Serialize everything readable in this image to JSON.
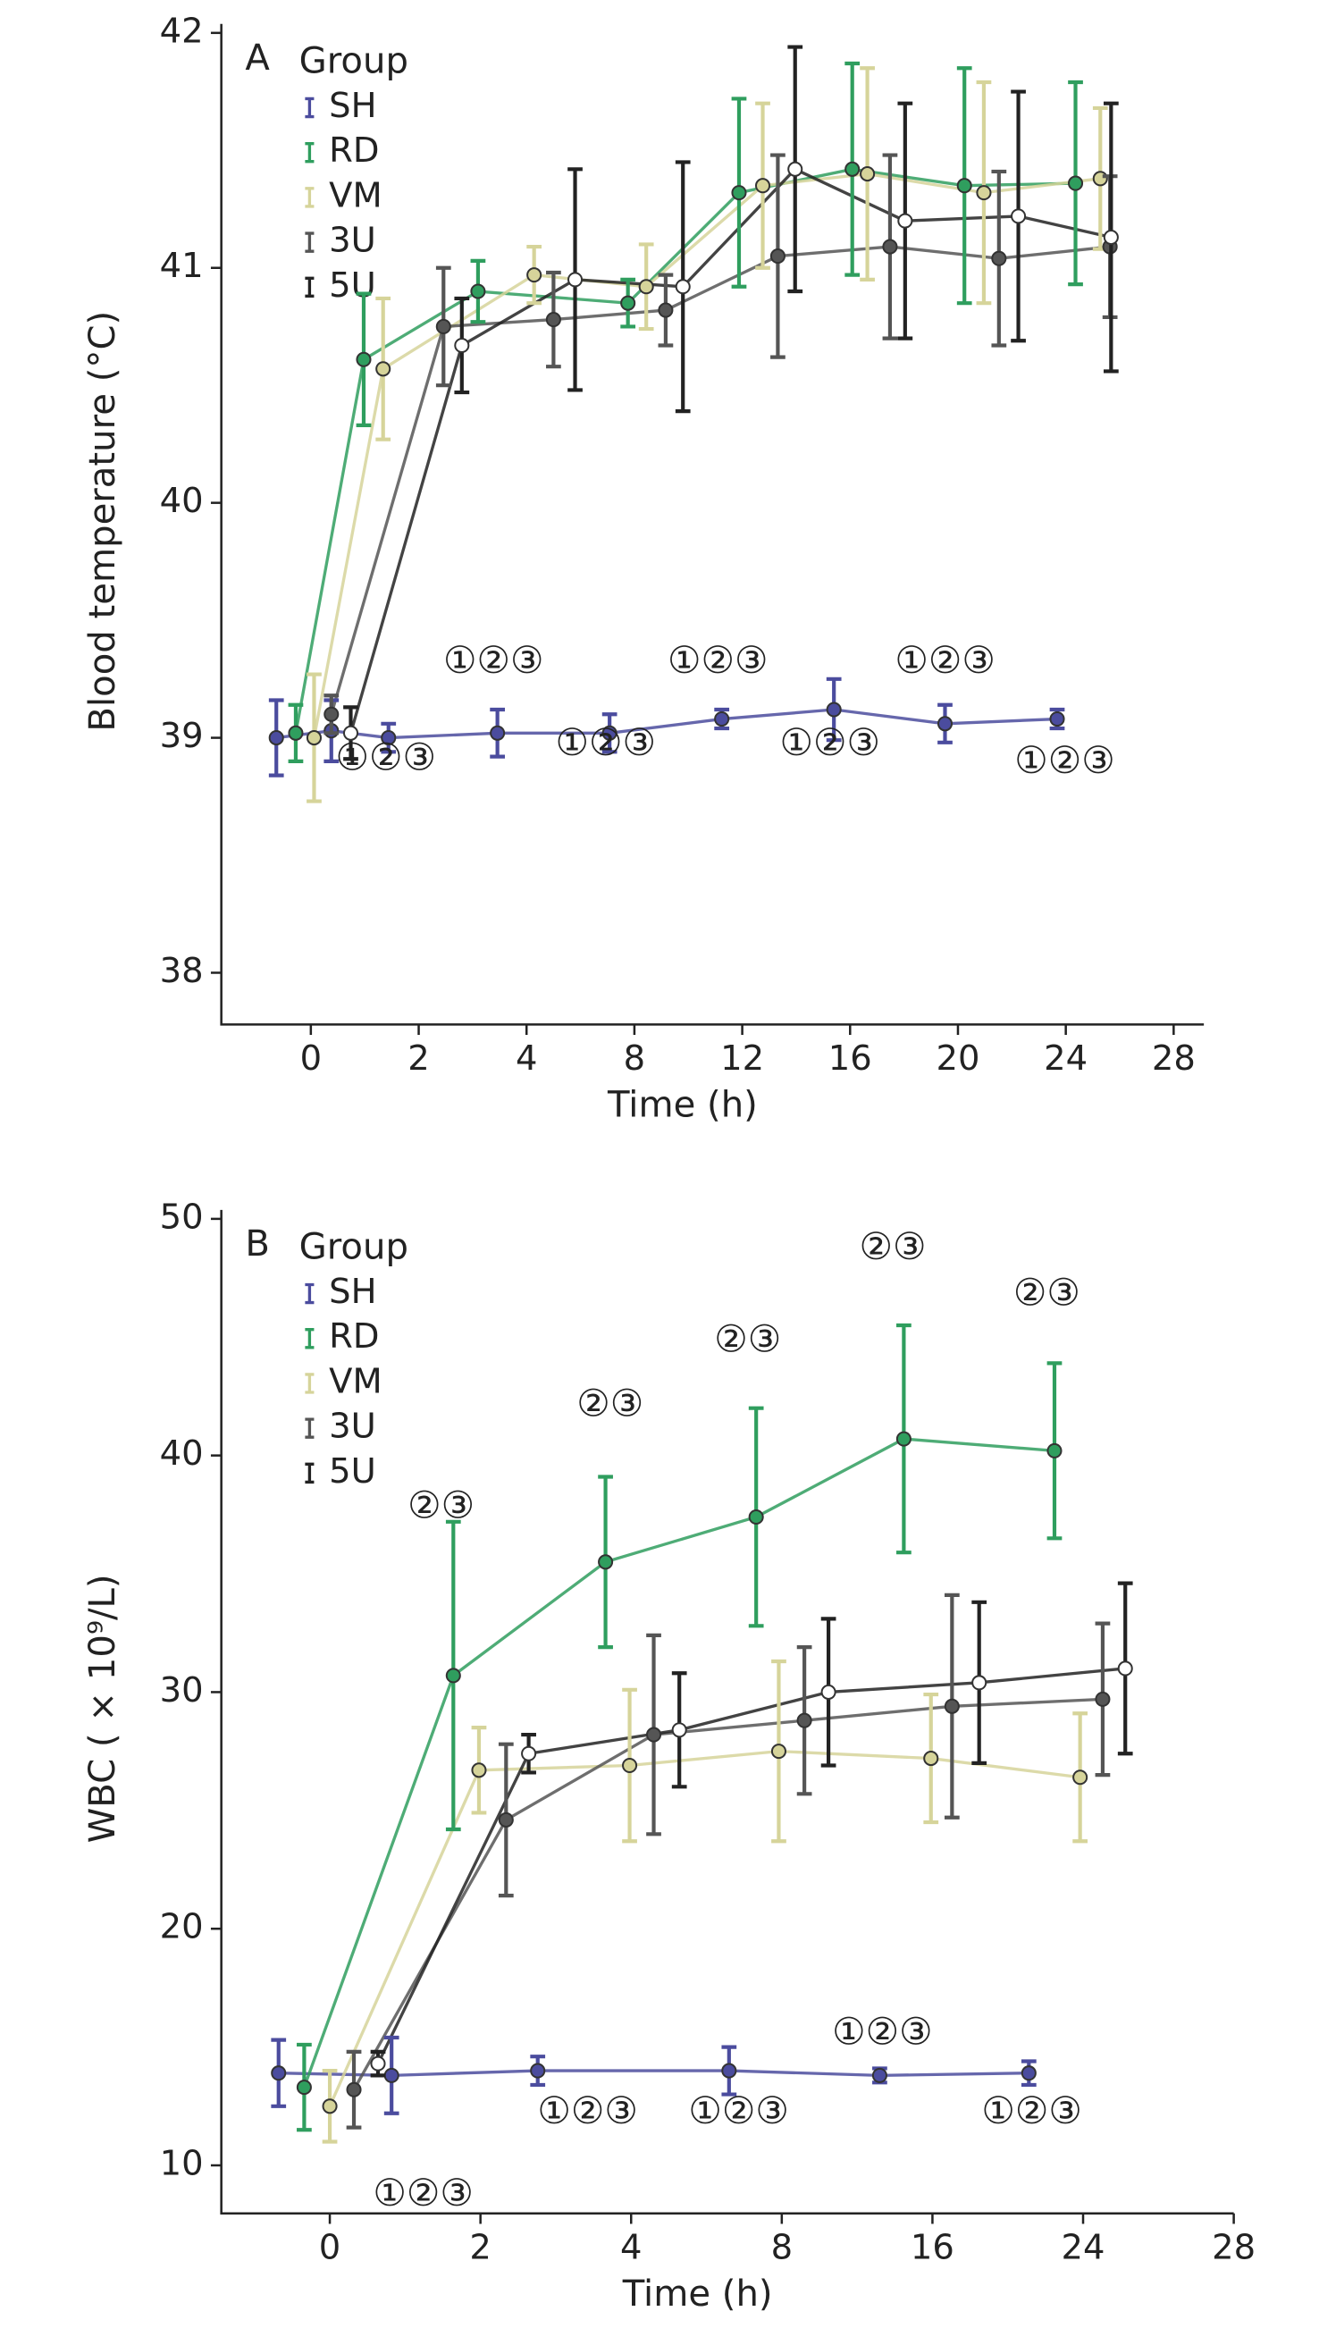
{
  "chart_data": [
    {
      "type": "errorline",
      "panel": "A",
      "legend_title": "Group",
      "x_label": "Time (h)",
      "y_label": "Blood temperature (°C)",
      "xlim": [
        -0.83,
        8.28
      ],
      "xticks": [
        {
          "value": 0,
          "label": "0"
        },
        {
          "value": 1,
          "label": "2"
        },
        {
          "value": 2,
          "label": "4"
        },
        {
          "value": 3,
          "label": "8"
        },
        {
          "value": 4,
          "label": "12"
        },
        {
          "value": 5,
          "label": "16"
        },
        {
          "value": 6,
          "label": "20"
        },
        {
          "value": 7,
          "label": "24"
        },
        {
          "value": 8,
          "label": "28"
        }
      ],
      "ylim": [
        37.78,
        42
      ],
      "yticks": [
        38,
        39,
        40,
        41,
        42
      ],
      "series": [
        {
          "name": "SH",
          "color": "#4b4c9e",
          "x": [
            -0.32,
            0.19,
            0.72,
            1.73,
            2.77,
            3.81,
            4.85,
            5.88,
            6.92
          ],
          "values": [
            39.0,
            39.03,
            39.0,
            39.02,
            39.02,
            39.08,
            39.12,
            39.06,
            39.08
          ],
          "errors": [
            0.16,
            0.13,
            0.06,
            0.1,
            0.08,
            0.04,
            0.13,
            0.08,
            0.04
          ]
        },
        {
          "name": "RD",
          "color": "#2f9e5e",
          "x": [
            -0.14,
            0.49,
            1.55,
            2.94,
            3.97,
            5.02,
            6.06,
            7.09
          ],
          "values": [
            39.02,
            40.61,
            40.9,
            40.85,
            41.32,
            41.42,
            41.35,
            41.36
          ],
          "errors": [
            0.12,
            0.28,
            0.13,
            0.1,
            0.4,
            0.45,
            0.5,
            0.43
          ]
        },
        {
          "name": "VM",
          "color": "#d6d49a",
          "x": [
            0.03,
            0.67,
            2.07,
            3.11,
            4.19,
            5.16,
            6.24,
            7.32
          ],
          "values": [
            39.0,
            40.57,
            40.97,
            40.92,
            41.35,
            41.4,
            41.32,
            41.38
          ],
          "errors": [
            0.27,
            0.3,
            0.12,
            0.18,
            0.35,
            0.45,
            0.47,
            0.3
          ]
        },
        {
          "name": "3U",
          "color": "#555555",
          "x": [
            0.19,
            1.23,
            2.25,
            3.29,
            4.33,
            5.37,
            6.38,
            7.41
          ],
          "values": [
            39.1,
            40.75,
            40.78,
            40.82,
            41.05,
            41.09,
            41.04,
            41.09
          ],
          "errors": [
            0.08,
            0.25,
            0.2,
            0.15,
            0.43,
            0.39,
            0.37,
            0.3
          ]
        },
        {
          "name": "5U",
          "color": "#222222",
          "x": [
            0.37,
            1.4,
            2.45,
            3.45,
            4.49,
            5.51,
            6.56,
            7.42
          ],
          "values": [
            39.02,
            40.67,
            40.95,
            40.92,
            41.42,
            41.2,
            41.22,
            41.13
          ],
          "errors": [
            0.11,
            0.2,
            0.47,
            0.53,
            0.52,
            0.5,
            0.53,
            0.57
          ]
        }
      ],
      "annotations": [
        "①②③",
        "①②③",
        "①②③",
        "①②③",
        "①②③",
        "①②③",
        "①②③"
      ]
    },
    {
      "type": "errorline",
      "panel": "B",
      "legend_title": "Group",
      "x_label": "Time (h)",
      "y_label": "WBC ( × 10⁹/L)",
      "xlim": [
        -0.72,
        6
      ],
      "xticks": [
        {
          "value": 0,
          "label": "0"
        },
        {
          "value": 1,
          "label": "2"
        },
        {
          "value": 2,
          "label": "4"
        },
        {
          "value": 3,
          "label": "8"
        },
        {
          "value": 4,
          "label": "16"
        },
        {
          "value": 5,
          "label": "24"
        },
        {
          "value": 6,
          "label": "28"
        }
      ],
      "ylim": [
        7.97,
        50
      ],
      "yticks": [
        10,
        20,
        30,
        40,
        50
      ],
      "series": [
        {
          "name": "SH",
          "color": "#4b4c9e",
          "x": [
            -0.34,
            0.41,
            1.38,
            2.65,
            3.65,
            4.64
          ],
          "values": [
            13.9,
            13.8,
            14.0,
            14.0,
            13.8,
            13.9
          ],
          "errors": [
            1.4,
            1.6,
            0.6,
            1.0,
            0.3,
            0.5
          ]
        },
        {
          "name": "RD",
          "color": "#2f9e5e",
          "x": [
            -0.17,
            0.82,
            1.83,
            2.83,
            3.81,
            4.81
          ],
          "values": [
            13.3,
            30.7,
            35.5,
            37.4,
            40.7,
            40.2
          ],
          "errors": [
            1.8,
            6.5,
            3.6,
            4.6,
            4.8,
            3.7
          ]
        },
        {
          "name": "VM",
          "color": "#d6d49a",
          "x": [
            0,
            0.99,
            1.99,
            2.98,
            3.99,
            4.98
          ],
          "values": [
            12.5,
            26.7,
            26.9,
            27.5,
            27.2,
            26.4
          ],
          "errors": [
            1.5,
            1.8,
            3.2,
            3.8,
            2.7,
            2.7
          ]
        },
        {
          "name": "3U",
          "color": "#555555",
          "x": [
            0.16,
            1.17,
            2.15,
            3.15,
            4.13,
            5.13
          ],
          "values": [
            13.2,
            24.6,
            28.2,
            28.8,
            29.4,
            29.7
          ],
          "errors": [
            1.6,
            3.2,
            4.2,
            3.1,
            4.7,
            3.2
          ]
        },
        {
          "name": "5U",
          "color": "#222222",
          "x": [
            0.32,
            1.32,
            2.32,
            3.31,
            4.31,
            5.28
          ],
          "values": [
            14.3,
            27.4,
            28.4,
            30.0,
            30.4,
            31.0
          ],
          "errors": [
            0.5,
            0.8,
            2.4,
            3.1,
            3.4,
            3.6
          ]
        }
      ],
      "annotations": [
        "②③",
        "②③",
        "②③",
        "②③",
        "②③",
        "①②③",
        "①②③",
        "①②③",
        "①②③",
        "①②③"
      ]
    }
  ]
}
